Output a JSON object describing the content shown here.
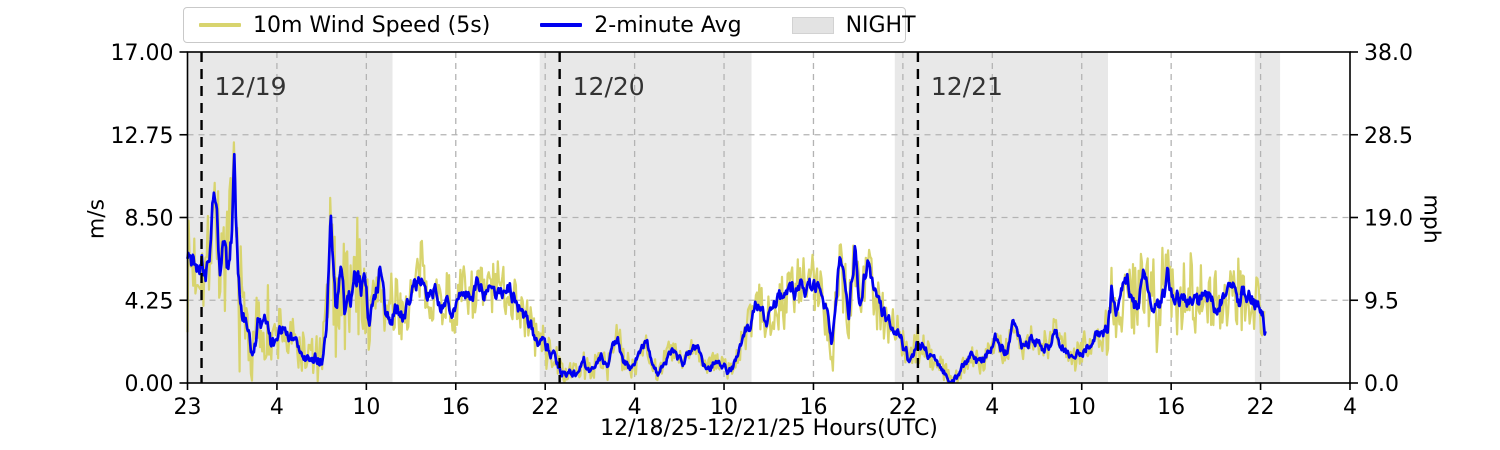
{
  "page": {
    "background": "#ffffff"
  },
  "legend": {
    "items": [
      {
        "label": "10m Wind Speed (5s)",
        "swatch": "line",
        "color": "#d8d46e"
      },
      {
        "label": "2-minute Avg",
        "swatch": "line",
        "color": "#0000f0"
      },
      {
        "label": "NIGHT",
        "swatch": "patch",
        "color": "#e3e3e3"
      }
    ]
  },
  "chart_data": {
    "type": "line",
    "xlabel": "12/18/25-12/21/25  Hours(UTC)",
    "ylabel_left": "m/s",
    "ylabel_right": "mph",
    "ylim_left": [
      0,
      17
    ],
    "ylim_right": [
      0,
      38
    ],
    "y_tick_values": [
      0,
      4.25,
      8.5,
      12.75,
      17
    ],
    "y_tick_labels_left": [
      "0.00",
      "4.25",
      "8.50",
      "12.75",
      "17.00"
    ],
    "y_tick_labels_right": [
      "0.0",
      "9.5",
      "19.0",
      "28.5",
      "38.0"
    ],
    "x_tick_labels": [
      "23",
      "4",
      "10",
      "16",
      "22",
      "4",
      "10",
      "16",
      "22",
      "4",
      "10",
      "16",
      "22",
      "4"
    ],
    "x_span_hours": 77,
    "data_end_hour": 71.4,
    "grid": true,
    "night_color": "#e8e8e8",
    "grid_color": "#b3b3b3",
    "night_bands": [
      [
        0,
        13.58
      ],
      [
        23.33,
        37.36
      ],
      [
        46.85,
        60.97
      ],
      [
        70.7,
        72.37
      ]
    ],
    "day_lines": [
      {
        "hour": 0.93,
        "label": "12/19"
      },
      {
        "hour": 24.65,
        "label": "12/20"
      },
      {
        "hour": 48.38,
        "label": "12/21"
      }
    ],
    "series": [
      {
        "name": "2-minute Avg",
        "color": "#0000f0",
        "points": [
          [
            0.0,
            6.0
          ],
          [
            0.33,
            6.2
          ],
          [
            0.66,
            6.0
          ],
          [
            0.93,
            6.6
          ],
          [
            1.19,
            5.5
          ],
          [
            1.46,
            6.6
          ],
          [
            1.66,
            9.5
          ],
          [
            1.92,
            8.9
          ],
          [
            2.12,
            6.0
          ],
          [
            2.39,
            7.0
          ],
          [
            2.65,
            5.2
          ],
          [
            2.92,
            7.4
          ],
          [
            3.11,
            10.8
          ],
          [
            3.31,
            6.0
          ],
          [
            3.58,
            4.1
          ],
          [
            3.84,
            3.3
          ],
          [
            4.11,
            2.6
          ],
          [
            4.31,
            1.0
          ],
          [
            4.51,
            2.2
          ],
          [
            4.64,
            3.3
          ],
          [
            4.9,
            2.7
          ],
          [
            5.17,
            2.9
          ],
          [
            5.43,
            2.5
          ],
          [
            5.57,
            1.5
          ],
          [
            5.9,
            2.4
          ],
          [
            6.23,
            3.1
          ],
          [
            6.56,
            2.1
          ],
          [
            6.89,
            2.2
          ],
          [
            7.22,
            1.9
          ],
          [
            7.55,
            1.7
          ],
          [
            7.89,
            1.3
          ],
          [
            8.22,
            1.5
          ],
          [
            8.55,
            1.2
          ],
          [
            8.88,
            1.1
          ],
          [
            9.21,
            3.1
          ],
          [
            9.48,
            7.9
          ],
          [
            9.68,
            5.5
          ],
          [
            9.87,
            3.3
          ],
          [
            10.14,
            6.2
          ],
          [
            10.4,
            3.6
          ],
          [
            10.67,
            5.2
          ],
          [
            10.93,
            4.5
          ],
          [
            11.2,
            5.3
          ],
          [
            11.46,
            5.0
          ],
          [
            11.73,
            4.8
          ],
          [
            12.06,
            2.7
          ],
          [
            12.39,
            4.3
          ],
          [
            12.72,
            5.6
          ],
          [
            13.12,
            3.6
          ],
          [
            13.52,
            3.4
          ],
          [
            13.92,
            4.0
          ],
          [
            14.31,
            3.6
          ],
          [
            14.78,
            4.3
          ],
          [
            15.24,
            5.2
          ],
          [
            15.44,
            5.7
          ],
          [
            15.9,
            4.4
          ],
          [
            16.37,
            4.8
          ],
          [
            16.76,
            4.1
          ],
          [
            17.16,
            4.5
          ],
          [
            17.56,
            3.6
          ],
          [
            17.96,
            4.4
          ],
          [
            18.36,
            4.9
          ],
          [
            18.82,
            4.6
          ],
          [
            19.22,
            5.1
          ],
          [
            19.62,
            4.4
          ],
          [
            20.01,
            5.0
          ],
          [
            20.48,
            4.7
          ],
          [
            20.88,
            4.9
          ],
          [
            21.34,
            4.9
          ],
          [
            21.74,
            4.3
          ],
          [
            22.2,
            3.8
          ],
          [
            22.66,
            2.9
          ],
          [
            23.13,
            2.3
          ],
          [
            23.59,
            2.0
          ],
          [
            24.06,
            1.6
          ],
          [
            24.45,
            1.2
          ],
          [
            24.72,
            0.7
          ],
          [
            25.05,
            0.45
          ],
          [
            25.45,
            0.55
          ],
          [
            25.84,
            0.5
          ],
          [
            26.24,
            1.1
          ],
          [
            26.64,
            0.7
          ],
          [
            27.04,
            0.9
          ],
          [
            27.37,
            1.3
          ],
          [
            27.77,
            0.8
          ],
          [
            28.16,
            2.0
          ],
          [
            28.5,
            2.5
          ],
          [
            28.89,
            1.1
          ],
          [
            29.29,
            0.8
          ],
          [
            29.69,
            1.1
          ],
          [
            30.09,
            1.9
          ],
          [
            30.42,
            2.1
          ],
          [
            30.75,
            0.9
          ],
          [
            31.15,
            0.6
          ],
          [
            31.54,
            1.2
          ],
          [
            31.94,
            1.7
          ],
          [
            32.34,
            1.5
          ],
          [
            32.8,
            0.9
          ],
          [
            33.27,
            1.6
          ],
          [
            33.73,
            1.9
          ],
          [
            34.13,
            1.0
          ],
          [
            34.59,
            0.8
          ],
          [
            34.99,
            1.2
          ],
          [
            35.45,
            1.0
          ],
          [
            35.85,
            0.6
          ],
          [
            36.18,
            0.9
          ],
          [
            36.58,
            1.7
          ],
          [
            36.98,
            2.6
          ],
          [
            37.38,
            3.3
          ],
          [
            37.71,
            4.1
          ],
          [
            38.04,
            3.6
          ],
          [
            38.37,
            2.9
          ],
          [
            38.7,
            4.0
          ],
          [
            39.1,
            4.2
          ],
          [
            39.5,
            4.3
          ],
          [
            39.89,
            4.9
          ],
          [
            40.29,
            4.6
          ],
          [
            40.69,
            5.0
          ],
          [
            41.09,
            5.1
          ],
          [
            41.48,
            4.9
          ],
          [
            41.88,
            5.1
          ],
          [
            42.28,
            4.0
          ],
          [
            42.68,
            1.9
          ],
          [
            42.94,
            3.5
          ],
          [
            43.21,
            6.6
          ],
          [
            43.54,
            5.0
          ],
          [
            43.8,
            3.8
          ],
          [
            44.2,
            6.7
          ],
          [
            44.53,
            4.2
          ],
          [
            44.86,
            5.5
          ],
          [
            45.19,
            6.1
          ],
          [
            45.53,
            4.6
          ],
          [
            45.86,
            3.8
          ],
          [
            46.25,
            3.3
          ],
          [
            46.65,
            3.1
          ],
          [
            47.05,
            2.6
          ],
          [
            47.45,
            1.9
          ],
          [
            47.84,
            1.1
          ],
          [
            48.18,
            1.7
          ],
          [
            48.38,
            2.1
          ],
          [
            48.71,
            2.0
          ],
          [
            49.11,
            1.6
          ],
          [
            49.5,
            1.1
          ],
          [
            49.9,
            0.9
          ],
          [
            50.3,
            0.5
          ],
          [
            50.7,
            0.2
          ],
          [
            51.09,
            0.4
          ],
          [
            51.49,
            0.9
          ],
          [
            51.89,
            1.5
          ],
          [
            52.29,
            1.1
          ],
          [
            52.68,
            1.2
          ],
          [
            53.08,
            1.7
          ],
          [
            53.48,
            2.4
          ],
          [
            53.88,
            1.8
          ],
          [
            54.27,
            1.5
          ],
          [
            54.67,
            2.9
          ],
          [
            55.07,
            2.2
          ],
          [
            55.47,
            1.6
          ],
          [
            55.86,
            2.4
          ],
          [
            56.26,
            2.2
          ],
          [
            56.66,
            1.5
          ],
          [
            57.06,
            2.0
          ],
          [
            57.45,
            2.8
          ],
          [
            57.85,
            2.0
          ],
          [
            58.25,
            1.6
          ],
          [
            58.65,
            1.3
          ],
          [
            59.04,
            1.5
          ],
          [
            59.44,
            1.8
          ],
          [
            59.84,
            2.1
          ],
          [
            60.24,
            2.5
          ],
          [
            60.63,
            2.4
          ],
          [
            60.97,
            2.9
          ],
          [
            61.23,
            4.7
          ],
          [
            61.56,
            3.8
          ],
          [
            61.89,
            4.4
          ],
          [
            62.29,
            5.1
          ],
          [
            62.69,
            4.1
          ],
          [
            63.09,
            4.4
          ],
          [
            63.35,
            5.7
          ],
          [
            63.68,
            4.2
          ],
          [
            64.08,
            4.5
          ],
          [
            64.48,
            4.1
          ],
          [
            64.88,
            5.6
          ],
          [
            65.27,
            4.2
          ],
          [
            65.67,
            4.4
          ],
          [
            66.07,
            4.7
          ],
          [
            66.47,
            4.3
          ],
          [
            66.86,
            4.0
          ],
          [
            67.26,
            4.6
          ],
          [
            67.66,
            4.3
          ],
          [
            68.06,
            4.1
          ],
          [
            68.45,
            4.4
          ],
          [
            68.85,
            4.7
          ],
          [
            69.25,
            5.3
          ],
          [
            69.65,
            4.4
          ],
          [
            70.04,
            4.8
          ],
          [
            70.44,
            4.5
          ],
          [
            70.77,
            4.2
          ],
          [
            71.04,
            3.9
          ],
          [
            71.24,
            3.3
          ],
          [
            71.37,
            2.7
          ]
        ]
      },
      {
        "name": "10m Wind Speed (5s)",
        "color": "#d8d46e",
        "note": "raw 5-second samples; gust envelope around 2-minute average",
        "envelope_amp": [
          [
            0,
            2.4
          ],
          [
            1,
            2.5
          ],
          [
            1.7,
            2.6
          ],
          [
            3.1,
            4.3
          ],
          [
            3.6,
            2.6
          ],
          [
            4.5,
            1.8
          ],
          [
            6,
            1.6
          ],
          [
            8,
            1.1
          ],
          [
            9.2,
            1.6
          ],
          [
            9.5,
            2.8
          ],
          [
            10.2,
            3.2
          ],
          [
            11.2,
            3.0
          ],
          [
            12,
            2.0
          ],
          [
            13,
            1.7
          ],
          [
            14,
            1.5
          ],
          [
            15.3,
            1.6
          ],
          [
            16.5,
            1.4
          ],
          [
            18,
            1.3
          ],
          [
            20,
            1.5
          ],
          [
            21.3,
            1.6
          ],
          [
            22.5,
            1.3
          ],
          [
            24,
            0.9
          ],
          [
            25,
            0.5
          ],
          [
            26,
            0.55
          ],
          [
            27.5,
            0.6
          ],
          [
            28.4,
            0.8
          ],
          [
            30,
            0.7
          ],
          [
            31.5,
            0.6
          ],
          [
            33,
            0.6
          ],
          [
            34.5,
            0.55
          ],
          [
            36,
            0.5
          ],
          [
            37,
            0.9
          ],
          [
            38,
            1.3
          ],
          [
            39.5,
            1.6
          ],
          [
            41,
            1.8
          ],
          [
            42.5,
            1.7
          ],
          [
            43.3,
            2.0
          ],
          [
            44.2,
            2.0
          ],
          [
            45.2,
            1.8
          ],
          [
            46.3,
            1.2
          ],
          [
            47.4,
            0.9
          ],
          [
            48.4,
            0.8
          ],
          [
            50,
            0.55
          ],
          [
            51.5,
            0.6
          ],
          [
            53,
            0.7
          ],
          [
            54.7,
            0.8
          ],
          [
            56,
            0.7
          ],
          [
            57.5,
            0.8
          ],
          [
            59,
            0.6
          ],
          [
            60.5,
            0.7
          ],
          [
            61.3,
            2.2
          ],
          [
            62.3,
            1.9
          ],
          [
            63.3,
            2.0
          ],
          [
            64.9,
            2.0
          ],
          [
            66,
            1.8
          ],
          [
            67.5,
            1.7
          ],
          [
            69,
            1.8
          ],
          [
            70.2,
            1.9
          ],
          [
            71,
            1.6
          ],
          [
            71.4,
            1.3
          ]
        ]
      }
    ]
  }
}
